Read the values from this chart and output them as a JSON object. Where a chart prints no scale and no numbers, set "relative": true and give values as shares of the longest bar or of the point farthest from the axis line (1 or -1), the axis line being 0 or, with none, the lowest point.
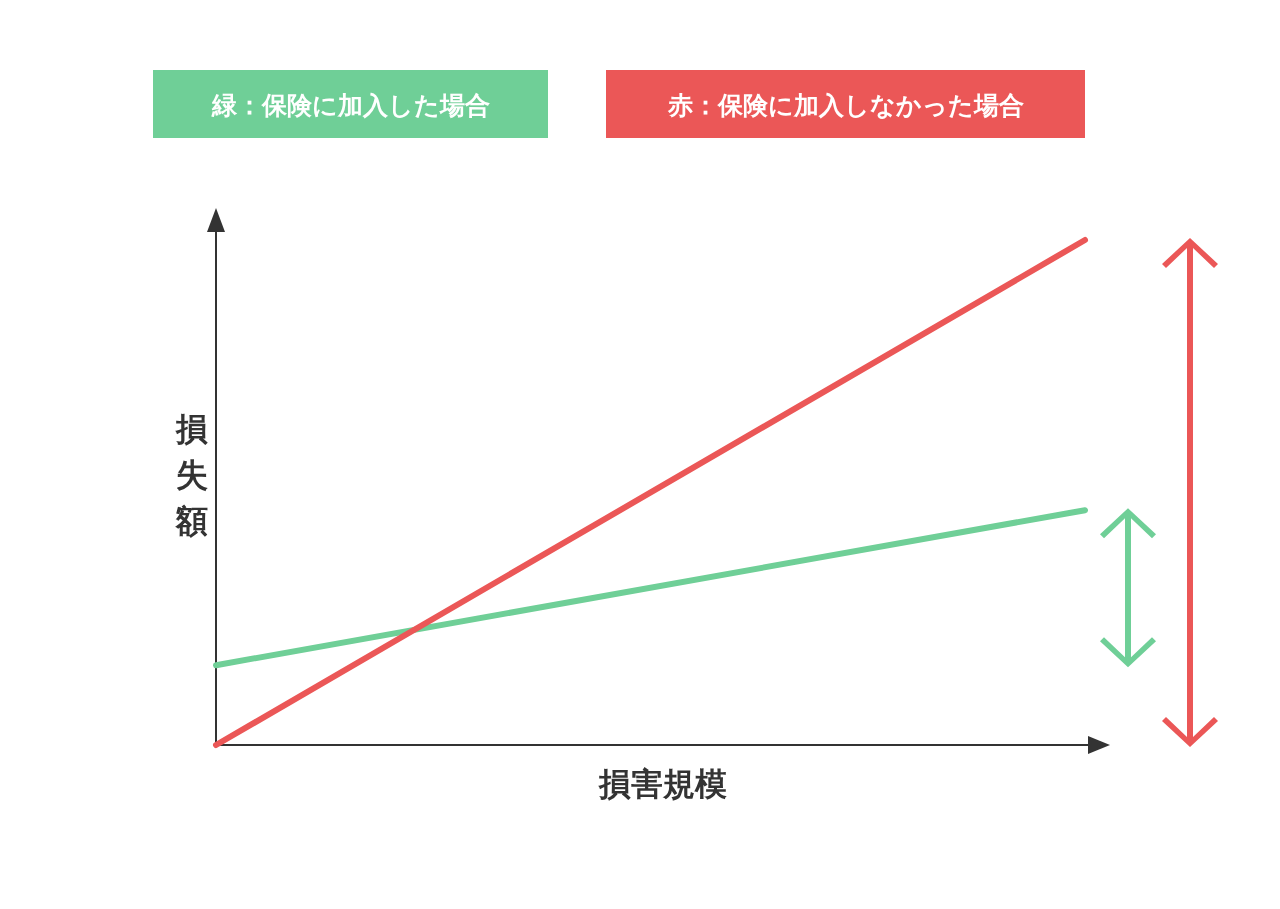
{
  "chart_data": {
    "type": "line",
    "relative": true,
    "categories": [
      null,
      null
    ],
    "xlabel": "損害規模",
    "ylabel": "損失額",
    "legend": "top",
    "marker": "none",
    "line_style": "solid",
    "series": [
      {
        "name": "緑：保険に加入した場合",
        "color": "#6fcf97",
        "values": [
          0.158,
          0.465
        ]
      },
      {
        "name": "赤：保険に加入しなかった場合",
        "color": "#eb5757",
        "values": [
          0,
          1
        ]
      }
    ]
  }
}
